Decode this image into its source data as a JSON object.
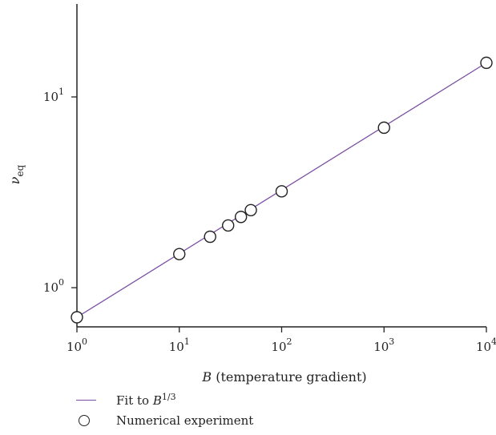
{
  "chart_data": {
    "type": "scatter",
    "x_scale": "log",
    "y_scale": "log",
    "xlabel_var": "B",
    "xlabel_rest": " (temperature gradient)",
    "ylabel_var": "ν",
    "ylabel_sub": "eq",
    "xlim": [
      1,
      10000
    ],
    "ylim": [
      0.7,
      31
    ],
    "x_ticks": [
      {
        "value": 1,
        "base": "10",
        "exp": "0"
      },
      {
        "value": 10,
        "base": "10",
        "exp": "1"
      },
      {
        "value": 100,
        "base": "10",
        "exp": "2"
      },
      {
        "value": 1000,
        "base": "10",
        "exp": "3"
      },
      {
        "value": 10000,
        "base": "10",
        "exp": "4"
      }
    ],
    "y_ticks": [
      {
        "value": 1,
        "base": "10",
        "exp": "0"
      },
      {
        "value": 10,
        "base": "10",
        "exp": "1"
      }
    ],
    "series": [
      {
        "name": "Fit to B^1/3",
        "kind": "line",
        "color": "#7a4fa3",
        "x": [
          1,
          10000
        ],
        "y": [
          0.7,
          15.1
        ]
      },
      {
        "name": "Numerical experiment",
        "kind": "scatter",
        "marker": "open-circle",
        "x": [
          1,
          10,
          20,
          30,
          40,
          50,
          100,
          1000,
          10000
        ],
        "y": [
          0.7,
          1.5,
          1.85,
          2.12,
          2.35,
          2.55,
          3.2,
          6.9,
          15.1
        ]
      }
    ],
    "legend": {
      "placement": "bottom-left",
      "entries": [
        {
          "kind": "line",
          "text": "Fit to ",
          "var": "B",
          "sup": "1/3"
        },
        {
          "kind": "circle",
          "text": "Numerical experiment"
        }
      ]
    },
    "grid": false
  }
}
